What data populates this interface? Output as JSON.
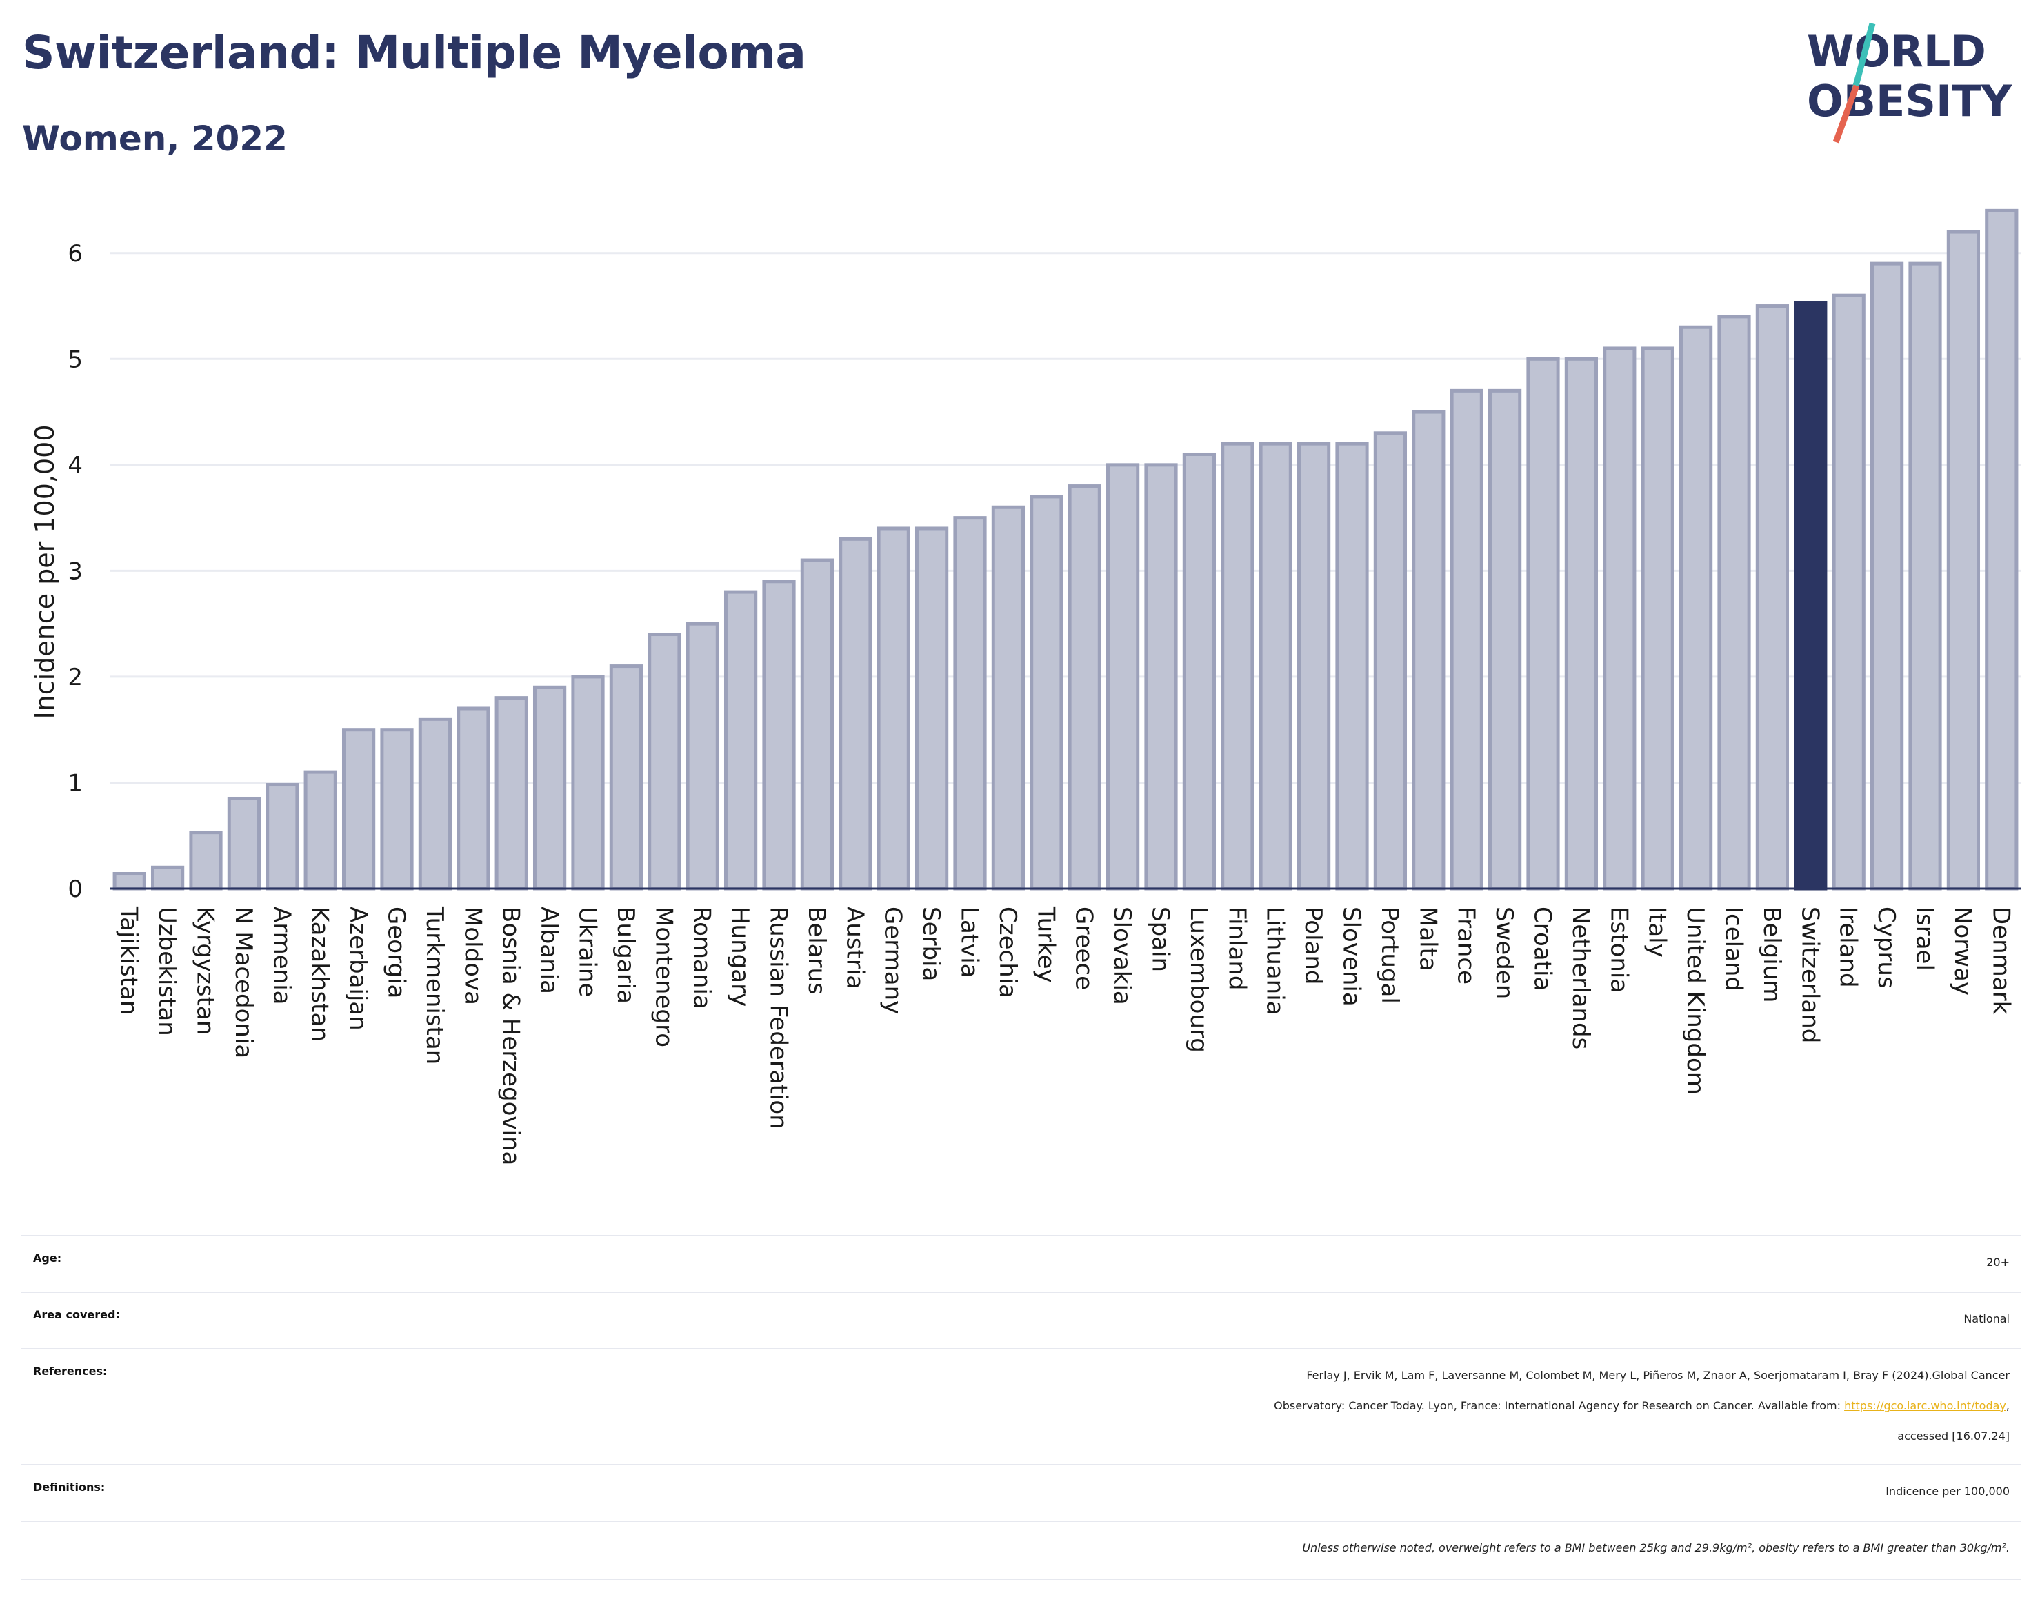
{
  "header": {
    "title": "Switzerland: Multiple Myeloma",
    "subtitle": "Women, 2022",
    "logo_line1": "WORLD",
    "logo_line2": "OBESITY"
  },
  "colors": {
    "bar": "#bfc3d3",
    "bar_border": "#9ca1ba",
    "highlight": "#2b3562",
    "grid": "#e9ebf1",
    "axis": "#2b3562",
    "logo_slash_teal": "#3cc0b8",
    "logo_slash_red": "#e5634f",
    "link": "#e8b21a"
  },
  "chart_data": {
    "type": "bar",
    "ylabel": "Incidence per 100,000",
    "ylim": [
      0,
      6.5
    ],
    "yticks": [
      0,
      1,
      2,
      3,
      4,
      5,
      6
    ],
    "highlight": "Switzerland",
    "grid": true,
    "categories": [
      "Tajikistan",
      "Uzbekistan",
      "Kyrgyzstan",
      "N Macedonia",
      "Armenia",
      "Kazakhstan",
      "Azerbaijan",
      "Georgia",
      "Turkmenistan",
      "Moldova",
      "Bosnia & Herzegovina",
      "Albania",
      "Ukraine",
      "Bulgaria",
      "Montenegro",
      "Romania",
      "Hungary",
      "Russian Federation",
      "Belarus",
      "Austria",
      "Germany",
      "Serbia",
      "Latvia",
      "Czechia",
      "Turkey",
      "Greece",
      "Slovakia",
      "Spain",
      "Luxembourg",
      "Finland",
      "Lithuania",
      "Poland",
      "Slovenia",
      "Portugal",
      "Malta",
      "France",
      "Sweden",
      "Croatia",
      "Netherlands",
      "Estonia",
      "Italy",
      "United Kingdom",
      "Iceland",
      "Belgium",
      "Switzerland",
      "Ireland",
      "Cyprus",
      "Israel",
      "Norway",
      "Denmark"
    ],
    "values": [
      0.14,
      0.2,
      0.53,
      0.85,
      0.98,
      1.1,
      1.5,
      1.5,
      1.6,
      1.7,
      1.8,
      1.9,
      2.0,
      2.1,
      2.4,
      2.5,
      2.8,
      2.9,
      3.1,
      3.3,
      3.4,
      3.4,
      3.5,
      3.6,
      3.7,
      3.8,
      4.0,
      4.0,
      4.1,
      4.2,
      4.2,
      4.2,
      4.2,
      4.3,
      4.5,
      4.7,
      4.7,
      5.0,
      5.0,
      5.1,
      5.1,
      5.3,
      5.4,
      5.5,
      5.53,
      5.6,
      5.9,
      5.9,
      6.2,
      6.4
    ]
  },
  "meta": {
    "age_label": "Age:",
    "age_value": "20+",
    "area_label": "Area covered:",
    "area_value": "National",
    "references_label": "References:",
    "references_line1": "Ferlay J, Ervik M, Lam F, Laversanne M, Colombet M, Mery L, Piñeros M, Znaor A, Soerjomataram I, Bray F (2024).Global Cancer",
    "references_line2": "Observatory: Cancer Today. Lyon, France: International Agency for Research on Cancer. Available from:",
    "references_link": "https://gco.iarc.who.int/today",
    "references_line3": "accessed [16.07.24]",
    "definitions_label": "Definitions:",
    "definitions_value": "Indicence per 100,000",
    "footnote": "Unless otherwise noted, overweight refers to a BMI between 25kg and 29.9kg/m², obesity refers to a BMI greater than 30kg/m²."
  }
}
